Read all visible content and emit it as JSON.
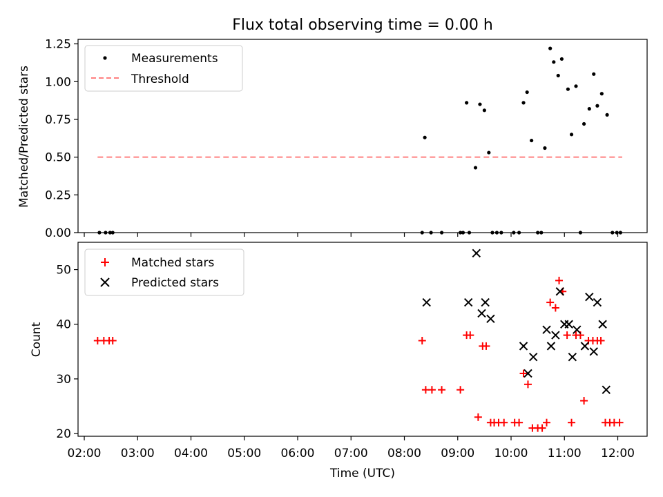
{
  "title": "Flux total observing time = 0.00 h",
  "chart_data": [
    {
      "type": "scatter",
      "ylabel": "Matched/Predicted stars",
      "ylim": [
        0,
        1.28
      ],
      "yticks": [
        0,
        0.25,
        0.5,
        0.75,
        1.0,
        1.25
      ],
      "ytick_labels": [
        "0.00",
        "0.25",
        "0.50",
        "0.75",
        "1.00",
        "1.25"
      ],
      "legend_position": "top-left",
      "legend": [
        "Measurements",
        "Threshold"
      ],
      "series": [
        {
          "name": "Measurements",
          "marker": "dot",
          "color": "#000000",
          "points": [
            [
              "02:17",
              0
            ],
            [
              "02:24",
              0
            ],
            [
              "02:29",
              0
            ],
            [
              "02:32",
              0
            ],
            [
              "08:20",
              0
            ],
            [
              "08:23",
              0.63
            ],
            [
              "08:30",
              0
            ],
            [
              "08:42",
              0
            ],
            [
              "09:03",
              0
            ],
            [
              "09:06",
              0
            ],
            [
              "09:10",
              0.86
            ],
            [
              "09:13",
              0
            ],
            [
              "09:20",
              0.43
            ],
            [
              "09:25",
              0.85
            ],
            [
              "09:30",
              0.81
            ],
            [
              "09:35",
              0.53
            ],
            [
              "09:39",
              0
            ],
            [
              "09:44",
              0
            ],
            [
              "09:49",
              0
            ],
            [
              "10:03",
              0
            ],
            [
              "10:09",
              0
            ],
            [
              "10:14",
              0.86
            ],
            [
              "10:18",
              0.93
            ],
            [
              "10:23",
              0.61
            ],
            [
              "10:30",
              0
            ],
            [
              "10:34",
              0
            ],
            [
              "10:38",
              0.56
            ],
            [
              "10:44",
              1.22
            ],
            [
              "10:48",
              1.13
            ],
            [
              "10:53",
              1.04
            ],
            [
              "10:57",
              1.15
            ],
            [
              "11:04",
              0.95
            ],
            [
              "11:08",
              0.65
            ],
            [
              "11:13",
              0.97
            ],
            [
              "11:18",
              0
            ],
            [
              "11:22",
              0.72
            ],
            [
              "11:28",
              0.82
            ],
            [
              "11:33",
              1.05
            ],
            [
              "11:37",
              0.84
            ],
            [
              "11:42",
              0.92
            ],
            [
              "11:48",
              0.78
            ],
            [
              "11:54",
              0
            ],
            [
              "11:59",
              0
            ],
            [
              "12:03",
              0
            ]
          ]
        },
        {
          "name": "Threshold",
          "style": "dashed",
          "color": "#ff8080",
          "points": [
            [
              "02:15",
              0.5
            ],
            [
              "12:05",
              0.5
            ]
          ]
        }
      ]
    },
    {
      "type": "scatter",
      "xlabel": "Time (UTC)",
      "ylabel": "Count",
      "ylim": [
        19.5,
        55
      ],
      "yticks": [
        20,
        30,
        40,
        50
      ],
      "ytick_labels": [
        "20",
        "30",
        "40",
        "50"
      ],
      "xlim": [
        "01:53",
        "12:33"
      ],
      "xticks": [
        "02:00",
        "03:00",
        "04:00",
        "05:00",
        "06:00",
        "07:00",
        "08:00",
        "09:00",
        "10:00",
        "11:00",
        "12:00"
      ],
      "legend_position": "top-left",
      "legend": [
        "Matched stars",
        "Predicted stars"
      ],
      "series": [
        {
          "name": "Matched stars",
          "marker": "plus",
          "color": "#ff0000",
          "points": [
            [
              "02:15",
              37
            ],
            [
              "02:22",
              37
            ],
            [
              "02:28",
              37
            ],
            [
              "02:32",
              37
            ],
            [
              "08:20",
              37
            ],
            [
              "08:24",
              28
            ],
            [
              "08:31",
              28
            ],
            [
              "08:42",
              28
            ],
            [
              "09:03",
              28
            ],
            [
              "09:10",
              38
            ],
            [
              "09:14",
              38
            ],
            [
              "09:23",
              23
            ],
            [
              "09:28",
              36
            ],
            [
              "09:32",
              36
            ],
            [
              "09:37",
              22
            ],
            [
              "09:41",
              22
            ],
            [
              "09:46",
              22
            ],
            [
              "09:52",
              22
            ],
            [
              "10:04",
              22
            ],
            [
              "10:09",
              22
            ],
            [
              "10:14",
              31
            ],
            [
              "10:19",
              29
            ],
            [
              "10:24",
              21
            ],
            [
              "10:30",
              21
            ],
            [
              "10:35",
              21
            ],
            [
              "10:40",
              22
            ],
            [
              "10:44",
              44
            ],
            [
              "10:50",
              43
            ],
            [
              "10:54",
              48
            ],
            [
              "10:58",
              46
            ],
            [
              "11:03",
              38
            ],
            [
              "11:08",
              22
            ],
            [
              "11:13",
              38
            ],
            [
              "11:18",
              38
            ],
            [
              "11:22",
              26
            ],
            [
              "11:27",
              37
            ],
            [
              "11:32",
              37
            ],
            [
              "11:37",
              37
            ],
            [
              "11:41",
              37
            ],
            [
              "11:46",
              22
            ],
            [
              "11:51",
              22
            ],
            [
              "11:56",
              22
            ],
            [
              "12:02",
              22
            ]
          ]
        },
        {
          "name": "Predicted stars",
          "marker": "x",
          "color": "#000000",
          "points": [
            [
              "08:25",
              44
            ],
            [
              "09:12",
              44
            ],
            [
              "09:21",
              53
            ],
            [
              "09:27",
              42
            ],
            [
              "09:31",
              44
            ],
            [
              "09:37",
              41
            ],
            [
              "10:14",
              36
            ],
            [
              "10:19",
              31
            ],
            [
              "10:25",
              34
            ],
            [
              "10:40",
              39
            ],
            [
              "10:45",
              36
            ],
            [
              "10:50",
              38
            ],
            [
              "10:55",
              46
            ],
            [
              "11:00",
              40
            ],
            [
              "11:05",
              40
            ],
            [
              "11:09",
              34
            ],
            [
              "11:14",
              39
            ],
            [
              "11:23",
              36
            ],
            [
              "11:28",
              45
            ],
            [
              "11:33",
              35
            ],
            [
              "11:37",
              44
            ],
            [
              "11:43",
              40
            ],
            [
              "11:47",
              28
            ]
          ]
        }
      ]
    }
  ]
}
